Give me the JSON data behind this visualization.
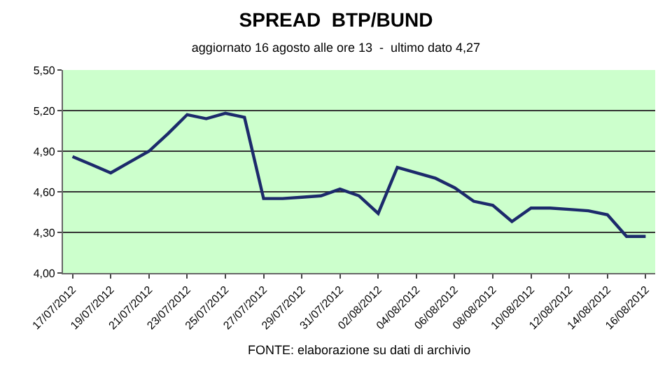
{
  "chart_data": {
    "type": "line",
    "title": "SPREAD  BTP/BUND",
    "subtitle": "aggiornato 16 agosto alle ore 13  -  ultimo dato 4,27",
    "categories": [
      "17/07/2012",
      null,
      "19/07/2012",
      null,
      "21/07/2012",
      null,
      "23/07/2012",
      null,
      "25/07/2012",
      null,
      "27/07/2012",
      null,
      "29/07/2012",
      null,
      "31/07/2012",
      null,
      "02/08/2012",
      null,
      "04/08/2012",
      null,
      "06/08/2012",
      null,
      "08/08/2012",
      null,
      "10/08/2012",
      null,
      "12/08/2012",
      null,
      "14/08/2012",
      null,
      "16/08/2012"
    ],
    "series": [
      {
        "color": "#1c2a6b",
        "values": [
          4.86,
          4.8,
          4.74,
          4.82,
          4.9,
          5.03,
          5.17,
          5.14,
          5.18,
          5.15,
          4.55,
          4.55,
          4.56,
          4.57,
          4.62,
          4.57,
          4.44,
          4.78,
          4.74,
          4.7,
          4.63,
          4.53,
          4.5,
          4.38,
          4.48,
          4.48,
          4.47,
          4.46,
          4.43,
          4.27,
          4.27
        ]
      }
    ],
    "ylim": [
      4.0,
      5.5
    ],
    "yticks": [
      {
        "value": 4.0,
        "label": "4,00"
      },
      {
        "value": 4.3,
        "label": "4,30"
      },
      {
        "value": 4.6,
        "label": "4,60"
      },
      {
        "value": 4.9,
        "label": "4,90"
      },
      {
        "value": 5.2,
        "label": "5,20"
      },
      {
        "value": 5.5,
        "label": "5,50"
      }
    ],
    "grid": "y",
    "marker": "none",
    "line_style": "solid",
    "annotations": [
      "FONTE: elaborazione su dati di archivio"
    ]
  }
}
